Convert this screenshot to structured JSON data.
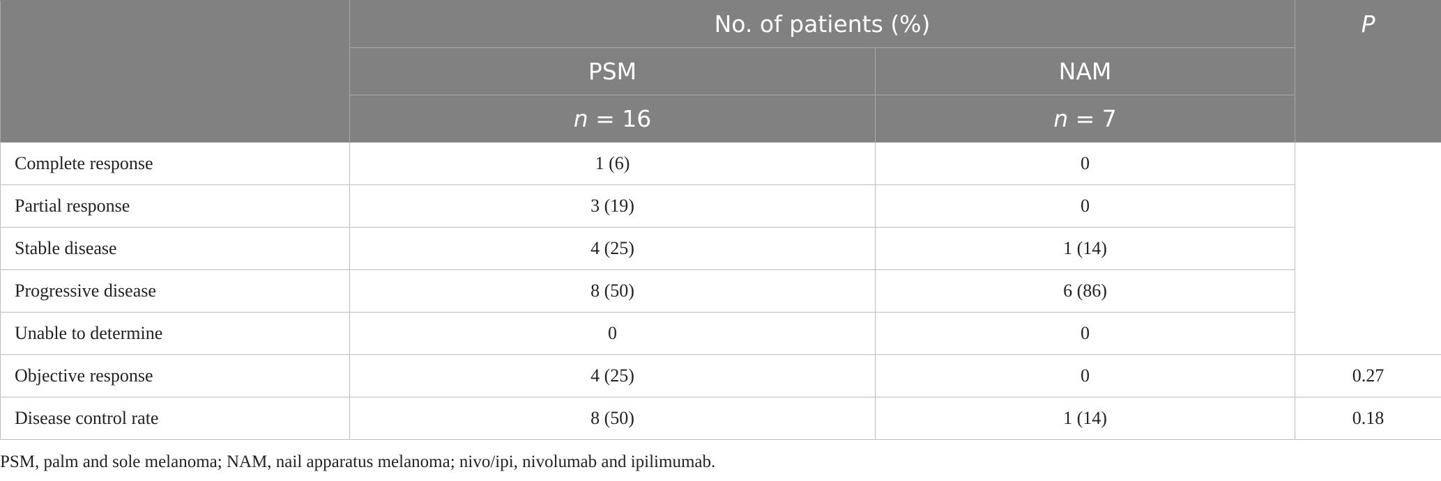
{
  "header": {
    "group_label": "No. of patients (%)",
    "p_label": "P",
    "columns": [
      {
        "name": "PSM",
        "n_var": "n",
        "n_value": "= 16"
      },
      {
        "name": "NAM",
        "n_var": "n",
        "n_value": "= 7"
      }
    ]
  },
  "rows": [
    {
      "label": "Complete response",
      "psm": "1 (6)",
      "nam": "0",
      "p": ""
    },
    {
      "label": "Partial response",
      "psm": "3 (19)",
      "nam": "0",
      "p": ""
    },
    {
      "label": "Stable disease",
      "psm": "4 (25)",
      "nam": "1 (14)",
      "p": ""
    },
    {
      "label": "Progressive disease",
      "psm": "8 (50)",
      "nam": "6 (86)",
      "p": ""
    },
    {
      "label": "Unable to determine",
      "psm": "0",
      "nam": "0",
      "p": ""
    },
    {
      "label": "Objective response",
      "psm": "4 (25)",
      "nam": "0",
      "p": "0.27"
    },
    {
      "label": "Disease control rate",
      "psm": "8 (50)",
      "nam": "1 (14)",
      "p": "0.18"
    }
  ],
  "footnote": "PSM, palm and sole melanoma; NAM, nail apparatus melanoma; nivo/ipi, nivolumab and ipilimumab.",
  "colors": {
    "header_bg": "#808180",
    "header_text": "#ffffff",
    "grid": "#bdbdbd"
  }
}
